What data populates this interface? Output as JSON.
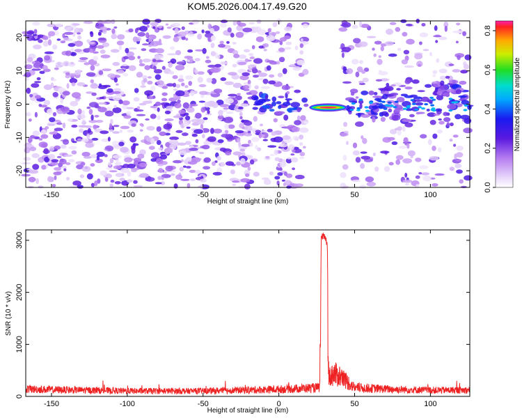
{
  "figure_title": "KOM5.2026.004.17.49.G20",
  "colors": {
    "snr_line": "#ee2222",
    "axis": "#000000",
    "spectro_low": "#c8a8f5",
    "spectro_mid": "#7a1fe0"
  },
  "chart_data": [
    {
      "type": "heatmap",
      "title": "",
      "xlabel": "Height of straight line (km)",
      "ylabel": "Frequency (Hz)",
      "xlim": [
        -167,
        126
      ],
      "ylim": [
        -25,
        25
      ],
      "xticks": [
        -150,
        -100,
        -50,
        0,
        50,
        100
      ],
      "yticks": [
        -20,
        -10,
        0,
        10,
        20
      ],
      "blank_x_range": [
        18,
        42
      ],
      "main_echo": {
        "x_range": [
          20,
          45
        ],
        "freq": -1,
        "peak_amplitude": 0.85
      },
      "colorbar": {
        "label": "Normalized spectral amplitude",
        "range": [
          0.0,
          0.85
        ],
        "ticks": [
          0.0,
          0.2,
          0.4,
          0.6,
          0.8
        ],
        "stops": [
          {
            "v": 0.0,
            "c": "#ffffff"
          },
          {
            "v": 0.05,
            "c": "#e8d8fb"
          },
          {
            "v": 0.15,
            "c": "#b57cf0"
          },
          {
            "v": 0.25,
            "c": "#5a1ae0"
          },
          {
            "v": 0.35,
            "c": "#1a1af0"
          },
          {
            "v": 0.45,
            "c": "#00aaff"
          },
          {
            "v": 0.52,
            "c": "#00ddcc"
          },
          {
            "v": 0.6,
            "c": "#22dd22"
          },
          {
            "v": 0.68,
            "c": "#ccee00"
          },
          {
            "v": 0.75,
            "c": "#ffaa00"
          },
          {
            "v": 0.82,
            "c": "#ff2222"
          },
          {
            "v": 0.88,
            "c": "#ff22aa"
          }
        ]
      }
    },
    {
      "type": "line",
      "title": "",
      "xlabel": "Height of straight line (km)",
      "ylabel": "SNR (10 * v/v)",
      "xlim": [
        -167,
        126
      ],
      "ylim": [
        0,
        3200
      ],
      "xticks": [
        -150,
        -100,
        -50,
        0,
        50,
        100
      ],
      "yticks": [
        0,
        1000,
        2000,
        3000
      ],
      "series": [
        {
          "name": "SNR",
          "description_points": {
            "x": [
              -167,
              -150,
              -130,
              -100,
              -50,
              0,
              20,
              27,
              28,
              29,
              30,
              31,
              32,
              33,
              35,
              40,
              45,
              50,
              75,
              100,
              126
            ],
            "y": [
              180,
              160,
              150,
              130,
              130,
              170,
              200,
              210,
              3050,
              3080,
              3060,
              3020,
              2900,
              420,
              540,
              500,
              360,
              210,
              170,
              150,
              150
            ]
          }
        }
      ]
    }
  ]
}
